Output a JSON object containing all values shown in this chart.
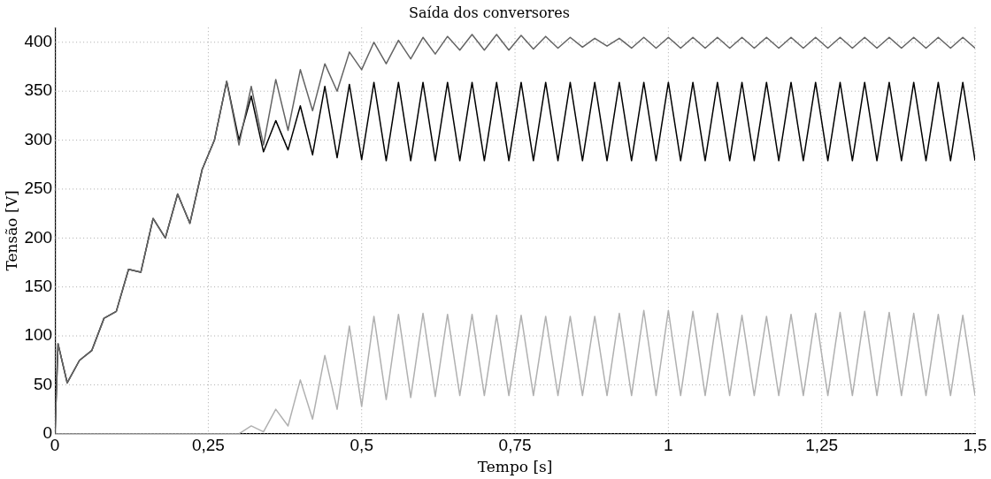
{
  "chart_data": {
    "type": "line",
    "title": "Saída dos conversores",
    "xlabel": "Tempo [s]",
    "ylabel": "Tensão [V]",
    "x": [
      0,
      0.005,
      0.02,
      0.04,
      0.06,
      0.08,
      0.1,
      0.12,
      0.14,
      0.16,
      0.18,
      0.2,
      0.22,
      0.24,
      0.26,
      0.28,
      0.3,
      0.32,
      0.34,
      0.36,
      0.38,
      0.4,
      0.42,
      0.44,
      0.46,
      0.48,
      0.5,
      0.52,
      0.54,
      0.56,
      0.58,
      0.6,
      0.62,
      0.64,
      0.66,
      0.68,
      0.7,
      0.72,
      0.74,
      0.76,
      0.78,
      0.8,
      0.82,
      0.84,
      0.86,
      0.88,
      0.9,
      0.92,
      0.94,
      0.96,
      0.98,
      1.0,
      1.02,
      1.04,
      1.06,
      1.08,
      1.1,
      1.12,
      1.14,
      1.16,
      1.18,
      1.2,
      1.22,
      1.24,
      1.26,
      1.28,
      1.3,
      1.32,
      1.34,
      1.36,
      1.38,
      1.4,
      1.42,
      1.44,
      1.46,
      1.48,
      1.5
    ],
    "series": [
      {
        "color": "#646464",
        "values": [
          0,
          92,
          52,
          75,
          85,
          118,
          125,
          168,
          165,
          220,
          200,
          245,
          215,
          270,
          300,
          360,
          295,
          355,
          295,
          362,
          310,
          372,
          330,
          378,
          350,
          390,
          372,
          400,
          378,
          402,
          383,
          405,
          388,
          406,
          392,
          408,
          392,
          408,
          392,
          407,
          393,
          406,
          394,
          405,
          395,
          404,
          396,
          404,
          394,
          405,
          394,
          405,
          394,
          405,
          394,
          405,
          394,
          405,
          394,
          405,
          394,
          405,
          394,
          405,
          394,
          405,
          394,
          405,
          394,
          405,
          394,
          405,
          394,
          405,
          394,
          405,
          394
        ]
      },
      {
        "color": "#000000",
        "values": [
          0,
          92,
          52,
          75,
          85,
          118,
          125,
          168,
          165,
          220,
          200,
          245,
          215,
          270,
          300,
          360,
          300,
          345,
          288,
          320,
          290,
          335,
          285,
          355,
          282,
          357,
          280,
          359,
          279,
          359,
          279,
          359,
          279,
          359,
          279,
          359,
          279,
          359,
          279,
          359,
          279,
          359,
          279,
          359,
          279,
          359,
          279,
          359,
          279,
          359,
          279,
          359,
          279,
          359,
          279,
          359,
          279,
          359,
          279,
          359,
          279,
          359,
          279,
          359,
          279,
          359,
          279,
          359,
          279,
          359,
          279,
          359,
          279,
          359,
          279,
          359,
          279
        ]
      },
      {
        "color": "#b0b0b0",
        "values": [
          0,
          0,
          0,
          0,
          0,
          0,
          0,
          0,
          0,
          0,
          0,
          0,
          0,
          0,
          0,
          0,
          0,
          8,
          2,
          25,
          8,
          55,
          15,
          80,
          25,
          110,
          28,
          120,
          35,
          122,
          37,
          123,
          38,
          122,
          39,
          122,
          39,
          121,
          39,
          121,
          39,
          120,
          39,
          120,
          39,
          120,
          39,
          123,
          39,
          126,
          39,
          126,
          39,
          125,
          39,
          123,
          39,
          121,
          39,
          120,
          39,
          122,
          39,
          123,
          39,
          124,
          39,
          125,
          39,
          124,
          39,
          123,
          39,
          122,
          39,
          121,
          39
        ]
      }
    ],
    "xlim": [
      0,
      1.5
    ],
    "xticks": [
      0,
      {
        "value": 0.25,
        "label": "0,25"
      },
      {
        "value": 0.5,
        "label": "0,5"
      },
      {
        "value": 0.75,
        "label": "0,75"
      },
      1,
      {
        "value": 1.25,
        "label": "1,25"
      },
      {
        "value": 1.5,
        "label": "1,5"
      }
    ],
    "ylim": [
      0,
      415
    ],
    "yticks": [
      0,
      50,
      100,
      150,
      200,
      250,
      300,
      350,
      400
    ],
    "grid": true,
    "legend": false,
    "marker": "none",
    "line_style": "solid"
  }
}
